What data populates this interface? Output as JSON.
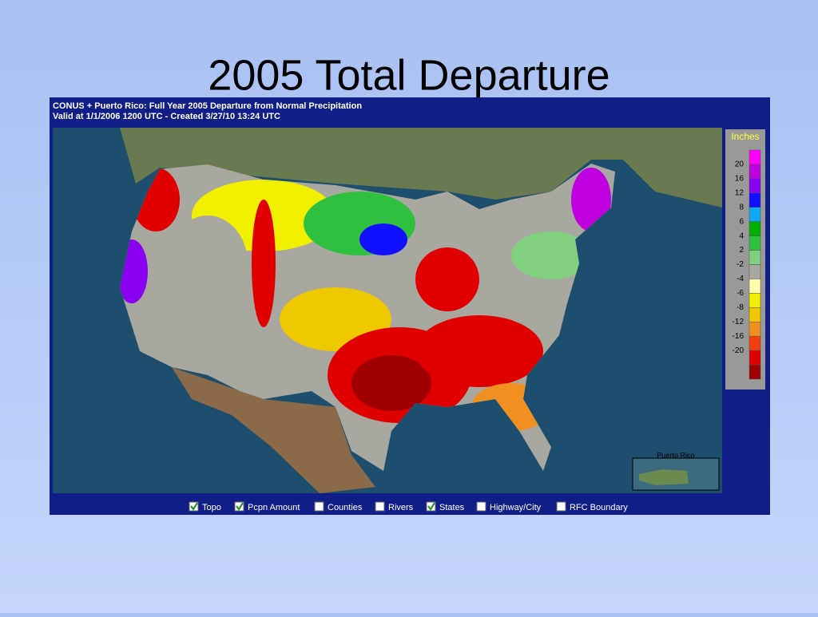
{
  "title": "2005 Total Departure",
  "map": {
    "header": [
      "CONUS + Puerto Rico: Full Year 2005 Departure from Normal Precipitation",
      "Valid at 1/1/2006 1200 UTC - Created 3/27/10 13:24 UTC"
    ],
    "inset_label": "Puerto Rico",
    "legend": {
      "title": "Inches",
      "ticks": [
        20,
        16,
        12,
        8,
        6,
        4,
        2,
        -2,
        -4,
        -6,
        -8,
        -12,
        -16,
        -20
      ],
      "colors": [
        "#ff00ff",
        "#c000e0",
        "#8a00f0",
        "#1010ff",
        "#10a8f0",
        "#00b000",
        "#30c040",
        "#80d080",
        "#a8a8a0",
        "#ffffb0",
        "#f0f000",
        "#f0c800",
        "#f09020",
        "#f04010",
        "#e00000",
        "#a00000"
      ]
    },
    "options": [
      {
        "label": "Topo",
        "checked": true
      },
      {
        "label": "Pcpn Amount",
        "checked": true
      },
      {
        "label": "Counties",
        "checked": false
      },
      {
        "label": "Rivers",
        "checked": false
      },
      {
        "label": "States",
        "checked": true
      },
      {
        "label": "Highway/City",
        "checked": false
      },
      {
        "label": "RFC Boundary",
        "checked": false
      }
    ]
  }
}
